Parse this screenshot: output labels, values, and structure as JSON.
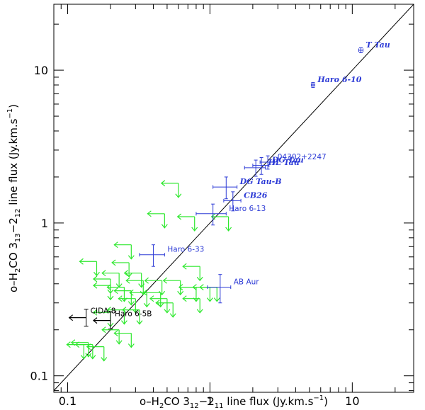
{
  "chart_data": {
    "type": "scatter",
    "title": "",
    "xlabel_parts": [
      "o–H",
      "2",
      "CO 3",
      "12",
      "−2",
      "11",
      " line flux (Jy.km.s",
      "−1",
      ")"
    ],
    "ylabel_parts": [
      "o–H",
      "2",
      "CO 3",
      "13",
      "−2",
      "12",
      " line flux (Jy.km.s",
      "−1",
      ")"
    ],
    "xscale": "log",
    "yscale": "log",
    "xlim": [
      0.08,
      27
    ],
    "ylim": [
      0.078,
      27
    ],
    "x_tick_labels": [
      {
        "value": 0.1,
        "label": "0.1"
      },
      {
        "value": 1,
        "label": "1"
      },
      {
        "value": 10,
        "label": "10"
      }
    ],
    "y_tick_labels": [
      {
        "value": 0.1,
        "label": "0.1"
      },
      {
        "value": 1,
        "label": "1"
      },
      {
        "value": 10,
        "label": "10"
      }
    ],
    "reference_line": "y = x",
    "colors": {
      "detection": "#2d3bd6",
      "detection_light": "#6b8be0",
      "upper_limit": "#2ee82e",
      "black_limit": "#000000",
      "one_to_one": "#000000"
    },
    "detections": [
      {
        "name": "T Tau",
        "x": 11.5,
        "y": 13.5,
        "xerr": 0.4,
        "yerr": 0.5,
        "italic": true
      },
      {
        "name": "Haro 6-10",
        "x": 5.3,
        "y": 8.0,
        "xerr": 0.15,
        "yerr": 0.3,
        "italic": true
      },
      {
        "name": "04302+2247",
        "x": 2.55,
        "y": 2.5,
        "xerr": 0.3,
        "yerr": 0.25,
        "italic": false
      },
      {
        "name": "DG Tau",
        "x": 2.3,
        "y": 2.38,
        "xerr": 0.3,
        "yerr": 0.3,
        "italic": true
      },
      {
        "name": "HL Tau",
        "x": 2.1,
        "y": 2.3,
        "xerr": 0.35,
        "yerr": 0.28,
        "italic": true
      },
      {
        "name": "DG Tau-B",
        "x": 1.3,
        "y": 1.72,
        "xerr": 0.25,
        "yerr": 0.28,
        "italic": true
      },
      {
        "name": "CB26",
        "x": 1.45,
        "y": 1.4,
        "xerr": 0.2,
        "yerr": 0.2,
        "italic": true
      },
      {
        "name": "Haro 6-13",
        "x": 1.05,
        "y": 1.15,
        "xerr": 0.25,
        "yerr": 0.18,
        "italic": false
      },
      {
        "name": "Haro 6-33",
        "x": 0.4,
        "y": 0.62,
        "xerr": 0.08,
        "yerr": 0.1,
        "italic": false
      },
      {
        "name": "AB Aur",
        "x": 1.18,
        "y": 0.38,
        "xerr": 0.22,
        "yerr": 0.08,
        "italic": false
      }
    ],
    "black_upper_limits": [
      {
        "name": "CIDA-8",
        "x": 0.135,
        "y": 0.24
      },
      {
        "name": "Haro 6-5B",
        "x": 0.2,
        "y": 0.23
      }
    ],
    "upper_limits": [
      {
        "x": 0.6,
        "y": 1.82
      },
      {
        "x": 0.48,
        "y": 1.15
      },
      {
        "x": 0.78,
        "y": 1.1
      },
      {
        "x": 1.35,
        "y": 1.1
      },
      {
        "x": 0.28,
        "y": 0.72
      },
      {
        "x": 0.16,
        "y": 0.56
      },
      {
        "x": 0.27,
        "y": 0.55
      },
      {
        "x": 0.23,
        "y": 0.47
      },
      {
        "x": 0.33,
        "y": 0.47
      },
      {
        "x": 0.85,
        "y": 0.52
      },
      {
        "x": 0.2,
        "y": 0.43
      },
      {
        "x": 0.34,
        "y": 0.42
      },
      {
        "x": 0.46,
        "y": 0.42
      },
      {
        "x": 0.62,
        "y": 0.42
      },
      {
        "x": 0.2,
        "y": 0.39
      },
      {
        "x": 0.25,
        "y": 0.38
      },
      {
        "x": 0.8,
        "y": 0.38
      },
      {
        "x": 1.0,
        "y": 0.38
      },
      {
        "x": 1.12,
        "y": 0.38
      },
      {
        "x": 0.28,
        "y": 0.36
      },
      {
        "x": 0.36,
        "y": 0.35
      },
      {
        "x": 0.45,
        "y": 0.35
      },
      {
        "x": 0.3,
        "y": 0.32
      },
      {
        "x": 0.5,
        "y": 0.32
      },
      {
        "x": 0.85,
        "y": 0.32
      },
      {
        "x": 0.55,
        "y": 0.3
      },
      {
        "x": 0.25,
        "y": 0.27
      },
      {
        "x": 0.32,
        "y": 0.27
      },
      {
        "x": 0.2,
        "y": 0.26
      },
      {
        "x": 0.23,
        "y": 0.2
      },
      {
        "x": 0.28,
        "y": 0.19
      },
      {
        "x": 0.14,
        "y": 0.165
      },
      {
        "x": 0.13,
        "y": 0.16
      },
      {
        "x": 0.15,
        "y": 0.16
      },
      {
        "x": 0.18,
        "y": 0.155
      }
    ]
  }
}
